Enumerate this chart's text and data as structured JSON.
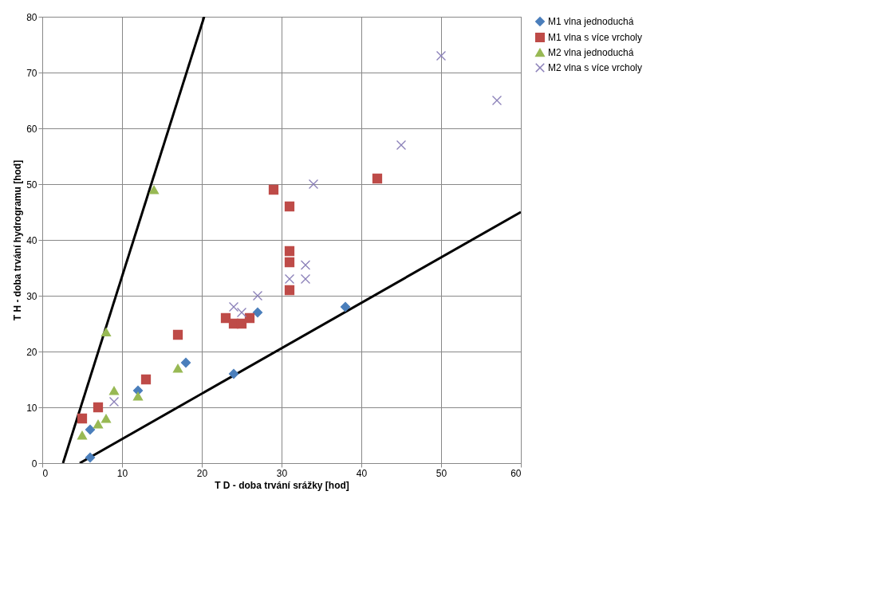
{
  "chart_data": {
    "type": "scatter",
    "xlabel": "T D - doba trvání srážky [hod]",
    "ylabel": "T H - doba trvání hydrogramu [hod]",
    "xlim": [
      0,
      60
    ],
    "ylim": [
      0,
      80
    ],
    "xticks": [
      0,
      10,
      20,
      30,
      40,
      50,
      60
    ],
    "yticks": [
      0,
      10,
      20,
      30,
      40,
      50,
      60,
      70,
      80
    ],
    "grid": true,
    "legend": "right",
    "series": [
      {
        "name": "M1 vlna jednoduchá",
        "color": "#4a7ebb",
        "marker": "diamond",
        "x": [
          6,
          6,
          12,
          18,
          24,
          27,
          38
        ],
        "values": [
          1,
          6,
          13,
          18,
          16,
          27,
          28
        ]
      },
      {
        "name": "M1 vlna s více vrcholy",
        "color": "#be4b48",
        "marker": "square",
        "x": [
          5,
          7,
          13,
          17,
          23,
          24,
          25,
          26,
          29,
          31,
          31,
          31,
          31,
          42
        ],
        "values": [
          8,
          10,
          15,
          23,
          26,
          25,
          25,
          26,
          49,
          46,
          38,
          36,
          31,
          51
        ]
      },
      {
        "name": "M2 vlna jednoduchá",
        "color": "#98b954",
        "marker": "triangle",
        "x": [
          5,
          7,
          8,
          8,
          9,
          12,
          14,
          17
        ],
        "values": [
          5,
          7,
          8,
          23.5,
          13,
          12,
          49,
          17
        ]
      },
      {
        "name": "M2 vlna s více vrcholy",
        "color": "#8a7fb8",
        "marker": "cross",
        "x": [
          9,
          24,
          25,
          27,
          31,
          33,
          33,
          34,
          45,
          50,
          57
        ],
        "values": [
          11,
          28,
          27,
          30,
          33,
          33,
          35.5,
          50,
          57,
          73,
          65
        ]
      },
      {
        "type": "line",
        "color": "#000000",
        "line_style": "solid",
        "x": [
          2.6,
          20.3
        ],
        "values": [
          0,
          80
        ]
      },
      {
        "type": "line",
        "color": "#000000",
        "line_style": "solid",
        "x": [
          4.7,
          60
        ],
        "values": [
          0,
          45
        ]
      }
    ]
  }
}
